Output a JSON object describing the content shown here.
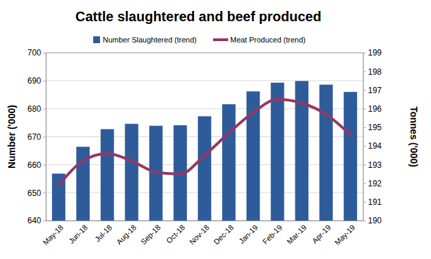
{
  "chart_data": {
    "type": "bar",
    "title": "Cattle slaughtered and beef produced",
    "y_label": "Number ('000)",
    "y2_label": "Tonnes ('000)",
    "categories": [
      "May-18",
      "Jun-18",
      "Jul-18",
      "Aug-18",
      "Sep-18",
      "Oct-18",
      "Nov-18",
      "Dec-18",
      "Jan-19",
      "Feb-19",
      "Mar-19",
      "Apr-19",
      "May-19"
    ],
    "series": [
      {
        "name": "Number Slaughtered (trend)",
        "type": "bar",
        "color": "#2e5c9a",
        "values": [
          656.8,
          666.4,
          672.7,
          674.6,
          673.9,
          674.1,
          677.3,
          681.6,
          686.2,
          689.3,
          689.9,
          688.6,
          686.0
        ]
      },
      {
        "name": "Meat Produced (trend)",
        "type": "line",
        "axis": "y2",
        "color": "#953765",
        "values": [
          191.9,
          193.2,
          193.6,
          193.2,
          192.6,
          192.5,
          193.5,
          194.7,
          195.8,
          196.5,
          196.3,
          195.7,
          194.6
        ]
      }
    ],
    "ylim": [
      640,
      700
    ],
    "yticks": [
      640,
      650,
      660,
      670,
      680,
      690,
      700
    ],
    "y2lim": [
      190,
      199
    ],
    "y2ticks": [
      190,
      191,
      192,
      193,
      194,
      195,
      196,
      197,
      198,
      199
    ],
    "grid": true,
    "legend": "top"
  }
}
